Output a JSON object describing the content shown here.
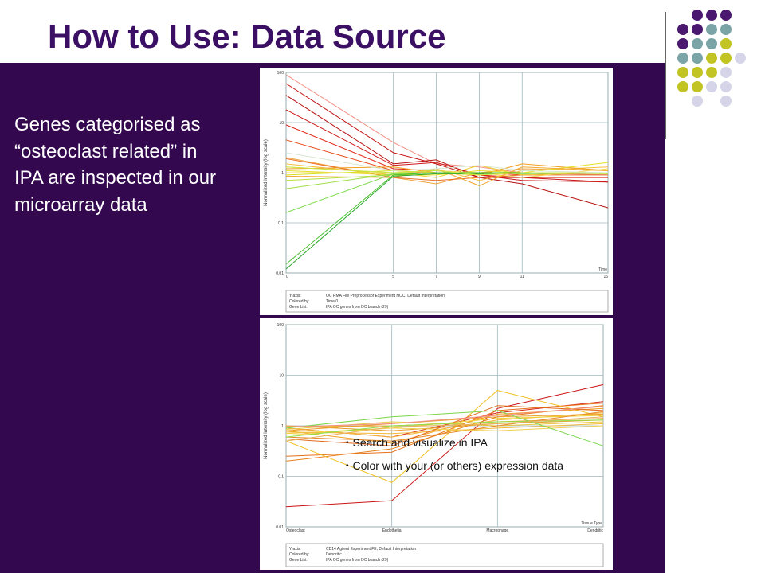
{
  "slide": {
    "title": "How to Use: Data Source",
    "description": "Genes categorised as “osteoclast related” in IPA are inspected in our microarray data",
    "bullets": [
      "Search and visualize in IPA",
      "Color with your (or others) expression data"
    ],
    "colors": {
      "title": "#3b0f63",
      "panel": "#33084f",
      "dot_purple": "#4b1870",
      "dot_teal": "#7aa4a6",
      "dot_lime": "#c2c424",
      "dot_lavender": "#d5d4e8"
    }
  },
  "chart_data": [
    {
      "type": "line",
      "ylabel": "Normalized Intensity (log scale)",
      "xlabel": "Time",
      "y_scale": "log",
      "yticks": [
        "100",
        "10",
        "1",
        "0.1",
        "0.01"
      ],
      "ylim": [
        0.01,
        100
      ],
      "x": [
        0,
        5,
        7,
        9,
        11,
        15
      ],
      "legend": [
        {
          "key": "Y-axis:",
          "value": "OC RMA File Preprocessor Experiment HOC, Default Interpretation"
        },
        {
          "key": "Colored by:",
          "value": "Time 0"
        },
        {
          "key": "Gene List:",
          "value": "IPA OC genes from DC branch (29)"
        }
      ],
      "series": [
        {
          "color": "#f28f84",
          "values": [
            90,
            4,
            1.5,
            1.3,
            1.0,
            0.9
          ]
        },
        {
          "color": "#c41212",
          "values": [
            60,
            2.5,
            1.5,
            0.8,
            0.8,
            0.65
          ]
        },
        {
          "color": "#b81010",
          "values": [
            35,
            1.5,
            1.8,
            0.8,
            0.6,
            0.2
          ]
        },
        {
          "color": "#d01a1a",
          "values": [
            18,
            1.4,
            1.6,
            0.9,
            0.7,
            0.65
          ]
        },
        {
          "color": "#e02a1a",
          "values": [
            9,
            1.2,
            1.1,
            0.9,
            0.8,
            0.8
          ]
        },
        {
          "color": "#e84a1a",
          "values": [
            4.5,
            1.1,
            1.0,
            1.0,
            0.9,
            1.0
          ]
        },
        {
          "color": "#f0a43c",
          "values": [
            2.0,
            0.8,
            0.6,
            1.0,
            1.2,
            1.1
          ]
        },
        {
          "color": "#e8702a",
          "values": [
            1.9,
            0.8,
            0.7,
            0.8,
            0.9,
            0.9
          ]
        },
        {
          "color": "#f5c040",
          "values": [
            1.5,
            0.9,
            1.2,
            0.7,
            1.1,
            1.3
          ]
        },
        {
          "color": "#efd033",
          "values": [
            1.3,
            1.0,
            0.8,
            1.4,
            0.9,
            1.0
          ]
        },
        {
          "color": "#f0a020",
          "values": [
            1.2,
            1.3,
            1.0,
            0.9,
            1.5,
            1.1
          ]
        },
        {
          "color": "#e6df2a",
          "values": [
            1.1,
            0.9,
            0.9,
            1.1,
            1.0,
            1.6
          ]
        },
        {
          "color": "#f7d55c",
          "values": [
            1.0,
            1.0,
            1.1,
            1.0,
            0.8,
            1.2
          ]
        },
        {
          "color": "#d6e020",
          "values": [
            0.9,
            1.1,
            1.0,
            0.9,
            1.0,
            1.0
          ]
        },
        {
          "color": "#f2a830",
          "values": [
            0.85,
            0.8,
            1.2,
            0.55,
            1.3,
            1.1
          ]
        },
        {
          "color": "#b6e03c",
          "values": [
            0.7,
            0.9,
            1.0,
            1.0,
            1.0,
            0.95
          ]
        },
        {
          "color": "#9fde49",
          "values": [
            0.48,
            0.95,
            1.0,
            1.0,
            1.0,
            1.0
          ]
        },
        {
          "color": "#7fda4f",
          "values": [
            0.16,
            0.95,
            1.0,
            1.0,
            0.95,
            1.0
          ]
        },
        {
          "color": "#4ac12e",
          "values": [
            0.015,
            0.9,
            1.0,
            1.0,
            1.0,
            1.0
          ]
        },
        {
          "color": "#2aa82a",
          "values": [
            0.012,
            0.85,
            0.95,
            0.95,
            1.0,
            1.0
          ]
        },
        {
          "color": "#c8e84a",
          "values": [
            1.3,
            1.0,
            1.1,
            0.9,
            1.0,
            1.0
          ]
        },
        {
          "color": "#d7e8d0",
          "values": [
            2.5,
            1.1,
            1.2,
            1.4,
            1.1,
            1.0
          ]
        }
      ]
    },
    {
      "type": "line",
      "ylabel": "Normalized Intensity (log scale)",
      "xlabel": "Tissue Type",
      "y_scale": "log",
      "yticks": [
        "100",
        "10",
        "1",
        "0.1",
        "0.01"
      ],
      "ylim": [
        0.01,
        100
      ],
      "categories": [
        "Osteoclast",
        "Endothelia",
        "Macrophage",
        "Dendritic"
      ],
      "legend": [
        {
          "key": "Y-axis:",
          "value": "CD14 Agilent Experiment FE, Default Interpretation"
        },
        {
          "key": "Colored by:",
          "value": "Dendritic"
        },
        {
          "key": "Gene List:",
          "value": "IPA OC genes from DC branch (29)"
        }
      ],
      "series": [
        {
          "color": "#cc1515",
          "values": [
            0.025,
            0.033,
            2.2,
            6.5
          ]
        },
        {
          "color": "#d52a1a",
          "values": [
            0.9,
            0.6,
            1.8,
            3.0
          ]
        },
        {
          "color": "#e8701a",
          "values": [
            0.25,
            0.3,
            2.0,
            2.8
          ]
        },
        {
          "color": "#e8801a",
          "values": [
            0.2,
            0.35,
            1.5,
            2.5
          ]
        },
        {
          "color": "#f0c020",
          "values": [
            0.5,
            0.075,
            5.0,
            1.5
          ]
        },
        {
          "color": "#f2a020",
          "values": [
            0.8,
            0.45,
            1.7,
            2.2
          ]
        },
        {
          "color": "#f5b53a",
          "values": [
            0.9,
            0.6,
            1.3,
            1.8
          ]
        },
        {
          "color": "#efd033",
          "values": [
            0.7,
            0.9,
            1.4,
            1.6
          ]
        },
        {
          "color": "#f0a030",
          "values": [
            0.95,
            1.0,
            1.2,
            1.4
          ]
        },
        {
          "color": "#e89a28",
          "values": [
            1.0,
            0.8,
            1.1,
            1.3
          ]
        },
        {
          "color": "#e8c840",
          "values": [
            0.85,
            1.2,
            1.0,
            1.2
          ]
        },
        {
          "color": "#f3b83a",
          "values": [
            0.75,
            0.7,
            0.9,
            1.1
          ]
        },
        {
          "color": "#e58a2c",
          "values": [
            0.6,
            0.5,
            1.0,
            1.9
          ]
        },
        {
          "color": "#f0d050",
          "values": [
            0.65,
            0.9,
            0.8,
            1.0
          ]
        },
        {
          "color": "#e26a20",
          "values": [
            0.55,
            0.4,
            2.5,
            2.0
          ]
        },
        {
          "color": "#eba030",
          "values": [
            0.8,
            1.1,
            1.5,
            1.7
          ]
        },
        {
          "color": "#7ad64a",
          "values": [
            0.9,
            1.5,
            2.0,
            0.4
          ]
        },
        {
          "color": "#8ee04a",
          "values": [
            0.6,
            1.0,
            1.2,
            1.3
          ]
        },
        {
          "color": "#f28f84",
          "values": [
            0.95,
            1.1,
            1.6,
            2.4
          ]
        },
        {
          "color": "#e8b060",
          "values": [
            0.5,
            0.95,
            1.1,
            1.5
          ]
        }
      ]
    }
  ]
}
